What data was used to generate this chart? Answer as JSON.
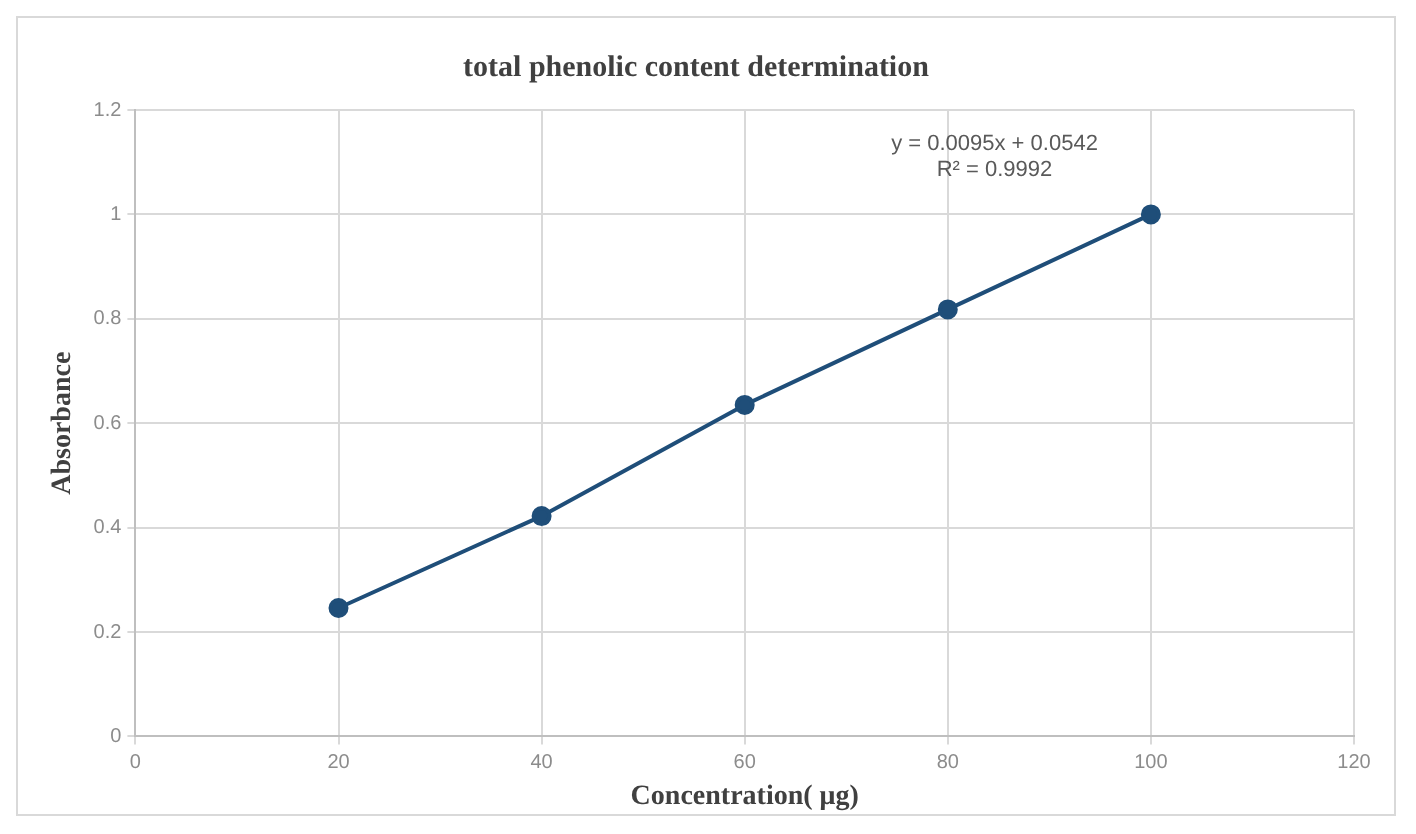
{
  "chart_data": {
    "type": "line",
    "title": "total phenolic content determination",
    "xlabel": "Concentration( μg)",
    "ylabel": "Absorbance",
    "x": [
      20,
      40,
      60,
      80,
      100
    ],
    "series": [
      {
        "color": "#1f4e79",
        "values": [
          0.246,
          0.422,
          0.635,
          0.818,
          1.0
        ]
      }
    ],
    "xlim": [
      0,
      120
    ],
    "xticks": [
      0,
      20,
      40,
      60,
      80,
      100,
      120
    ],
    "ylim": [
      0,
      1.2
    ],
    "yticks": [
      0,
      0.2,
      0.4,
      0.6,
      0.8,
      1,
      1.2
    ],
    "grid": true,
    "marker": "circle",
    "line_style": "solid",
    "legend": false,
    "annotations": [
      "y = 0.0095x + 0.0542",
      "R² = 0.9992"
    ]
  }
}
